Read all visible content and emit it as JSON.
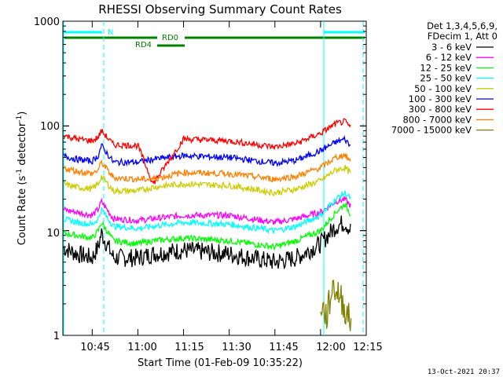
{
  "chart_data": {
    "type": "line",
    "title": "RHESSI Observing Summary Count Rates",
    "xlabel": "Start Time (01-Feb-09 10:35:22)",
    "ylabel_main": "Count Rate (s",
    "ylabel_sup1": "-1",
    "ylabel_mid": " detector",
    "ylabel_sup2": "-1",
    "ylabel_end": ")",
    "y_scale": "log",
    "ylim": [
      1,
      1000
    ],
    "xlim": [
      "10:35:22",
      "12:15"
    ],
    "x_ticks": [
      "10:45",
      "11:00",
      "11:15",
      "11:30",
      "11:45",
      "12:00",
      "12:15"
    ],
    "y_ticks": [
      "1",
      "10",
      "100",
      "1000"
    ],
    "legend_header": [
      "Det 1,3,4,5,6,9,",
      "FDecim 1, Att 0"
    ],
    "series": [
      {
        "name": "3 - 6 keV",
        "color": "#000000",
        "x": [
          "10:35",
          "10:40",
          "10:45",
          "10:47",
          "10:48",
          "10:52",
          "11:00",
          "11:05",
          "11:15",
          "11:30",
          "11:45",
          "11:52",
          "12:00",
          "12:05",
          "12:08",
          "12:10"
        ],
        "values": [
          7,
          6,
          5.5,
          7,
          9.5,
          5.5,
          5.5,
          6,
          6.5,
          6,
          5,
          5.5,
          7.5,
          11,
          12,
          10
        ]
      },
      {
        "name": "6 - 12 keV",
        "color": "#ff00ff",
        "x": [
          "10:35",
          "10:40",
          "10:45",
          "10:47",
          "10:48",
          "10:52",
          "11:00",
          "11:05",
          "11:15",
          "11:30",
          "11:45",
          "11:52",
          "12:00",
          "12:05",
          "12:08",
          "12:10"
        ],
        "values": [
          16,
          15,
          14,
          16,
          19,
          13,
          12.5,
          13,
          14,
          14,
          12,
          13,
          15,
          19,
          20,
          17
        ]
      },
      {
        "name": "12 - 25 keV",
        "color": "#00ff00",
        "x": [
          "10:35",
          "10:40",
          "10:45",
          "10:47",
          "10:48",
          "10:52",
          "11:00",
          "11:05",
          "11:15",
          "11:30",
          "11:45",
          "11:52",
          "12:00",
          "12:05",
          "12:08",
          "12:10"
        ],
        "values": [
          9.5,
          9,
          8.5,
          10,
          12,
          8,
          7.5,
          8,
          8.5,
          8,
          7,
          8,
          10,
          15,
          18,
          14
        ]
      },
      {
        "name": "25 - 50 keV",
        "color": "#00ffff",
        "x": [
          "10:35",
          "10:40",
          "10:45",
          "10:47",
          "10:48",
          "10:52",
          "11:00",
          "11:05",
          "11:15",
          "11:30",
          "11:45",
          "11:52",
          "12:00",
          "12:05",
          "12:08",
          "12:10"
        ],
        "values": [
          13,
          12,
          11.5,
          13,
          16,
          11,
          10.5,
          11,
          12,
          11.5,
          10,
          11,
          14,
          20,
          23,
          20
        ]
      },
      {
        "name": "50 - 100 keV",
        "color": "#cccc00",
        "x": [
          "10:35",
          "10:40",
          "10:45",
          "10:47",
          "10:48",
          "10:52",
          "11:00",
          "11:05",
          "11:15",
          "11:30",
          "11:45",
          "11:52",
          "12:00",
          "12:05",
          "12:08",
          "12:10"
        ],
        "values": [
          28,
          26,
          25,
          28,
          33,
          24,
          24,
          26,
          28,
          27,
          23,
          25,
          30,
          38,
          40,
          35
        ]
      },
      {
        "name": "100 - 300 keV",
        "color": "#0000ff",
        "x": [
          "10:35",
          "10:40",
          "10:45",
          "10:47",
          "10:48",
          "10:52",
          "11:00",
          "11:05",
          "11:15",
          "11:30",
          "11:45",
          "11:52",
          "12:00",
          "12:05",
          "12:08",
          "12:10"
        ],
        "values": [
          52,
          48,
          46,
          52,
          65,
          45,
          45,
          48,
          52,
          50,
          44,
          47,
          58,
          70,
          75,
          63
        ]
      },
      {
        "name": "300 - 800 keV",
        "color": "#ff0000",
        "x": [
          "10:35",
          "10:40",
          "10:45",
          "10:47",
          "10:48",
          "10:52",
          "11:00",
          "11:05",
          "11:15",
          "11:30",
          "11:45",
          "11:52",
          "12:00",
          "12:05",
          "12:08",
          "12:10"
        ],
        "values": [
          82,
          75,
          72,
          78,
          90,
          66,
          65,
          28,
          75,
          72,
          63,
          68,
          85,
          105,
          110,
          95
        ]
      },
      {
        "name": "800 - 7000 keV",
        "color": "#ff8000",
        "x": [
          "10:35",
          "10:40",
          "10:45",
          "10:47",
          "10:48",
          "10:52",
          "11:00",
          "11:05",
          "11:15",
          "11:30",
          "11:45",
          "11:52",
          "12:00",
          "12:05",
          "12:08",
          "12:10"
        ],
        "values": [
          40,
          37,
          35,
          38,
          45,
          32,
          31,
          31,
          36,
          35,
          31,
          33,
          40,
          50,
          53,
          45
        ]
      },
      {
        "name": "7000 - 15000 keV",
        "color": "#808000",
        "x": [
          "12:00",
          "12:02",
          "12:04",
          "12:06",
          "12:08",
          "12:10"
        ],
        "values": [
          2,
          1.5,
          3,
          2.5,
          1.8,
          1.3
        ]
      }
    ],
    "annotations": [
      {
        "label": "N",
        "color": "#00ffff"
      },
      {
        "label": "RD0",
        "color": "#008000"
      },
      {
        "label": "RD4",
        "color": "#008000"
      }
    ],
    "footer": "13-Oct-2021 20:37"
  }
}
